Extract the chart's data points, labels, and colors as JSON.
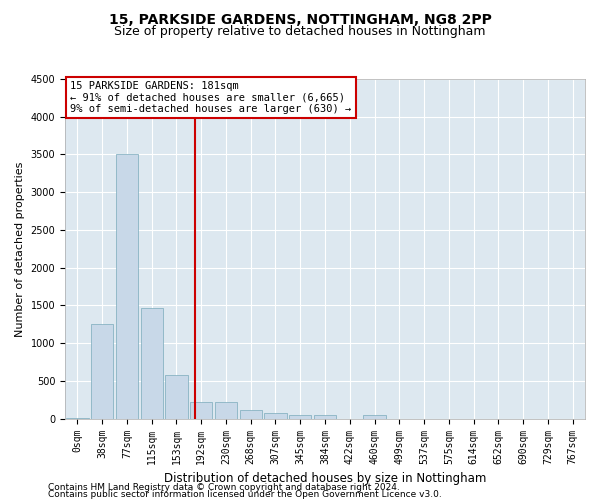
{
  "title1": "15, PARKSIDE GARDENS, NOTTINGHAM, NG8 2PP",
  "title2": "Size of property relative to detached houses in Nottingham",
  "xlabel": "Distribution of detached houses by size in Nottingham",
  "ylabel": "Number of detached properties",
  "bar_labels": [
    "0sqm",
    "38sqm",
    "77sqm",
    "115sqm",
    "153sqm",
    "192sqm",
    "230sqm",
    "268sqm",
    "307sqm",
    "345sqm",
    "384sqm",
    "422sqm",
    "460sqm",
    "499sqm",
    "537sqm",
    "575sqm",
    "614sqm",
    "652sqm",
    "690sqm",
    "729sqm",
    "767sqm"
  ],
  "bar_values": [
    5,
    1250,
    3500,
    1470,
    580,
    220,
    215,
    110,
    80,
    55,
    45,
    0,
    50,
    0,
    0,
    0,
    0,
    0,
    0,
    0,
    0
  ],
  "bar_color": "#c8d8e8",
  "bar_edge_color": "#7aaabb",
  "ylim": [
    0,
    4500
  ],
  "yticks": [
    0,
    500,
    1000,
    1500,
    2000,
    2500,
    3000,
    3500,
    4000,
    4500
  ],
  "property_line_x": 4.74,
  "annotation_text": "15 PARKSIDE GARDENS: 181sqm\n← 91% of detached houses are smaller (6,665)\n9% of semi-detached houses are larger (630) →",
  "annotation_box_color": "#ffffff",
  "annotation_box_edge_color": "#cc0000",
  "property_line_color": "#cc0000",
  "footnote1": "Contains HM Land Registry data © Crown copyright and database right 2024.",
  "footnote2": "Contains public sector information licensed under the Open Government Licence v3.0.",
  "plot_bg_color": "#dde8f0",
  "title_fontsize": 10,
  "subtitle_fontsize": 9,
  "tick_fontsize": 7,
  "ylabel_fontsize": 8,
  "xlabel_fontsize": 8.5,
  "footnote_fontsize": 6.5
}
